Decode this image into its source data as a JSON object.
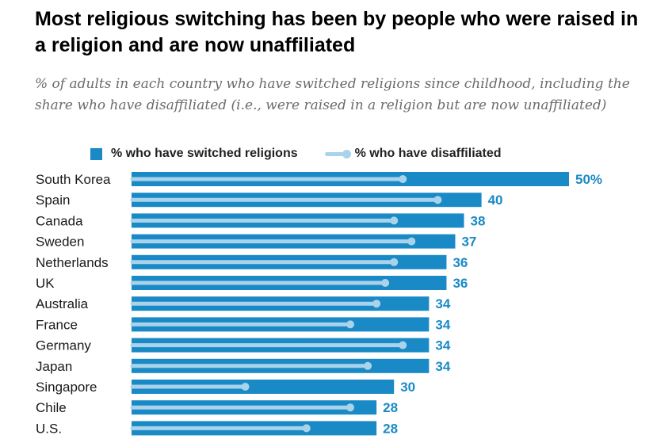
{
  "chart_data": {
    "type": "bar",
    "title": "Most religious switching has been by people who were raised in a religion and are now unaffiliated",
    "subtitle": "% of adults in each country who have switched religions since childhood, including the share who have disaffiliated (i.e., were raised in a religion but are now unaffiliated)",
    "legend": [
      {
        "label": "% who have switched religions",
        "marker": "bar"
      },
      {
        "label": "% who have disaffiliated",
        "marker": "line-dot"
      }
    ],
    "legend_position": "top",
    "categories": [
      "South Korea",
      "Spain",
      "Canada",
      "Sweden",
      "Netherlands",
      "UK",
      "Australia",
      "France",
      "Germany",
      "Japan",
      "Singapore",
      "Chile",
      "U.S."
    ],
    "series": [
      {
        "name": "% who have switched religions",
        "values": [
          50,
          40,
          38,
          37,
          36,
          36,
          34,
          34,
          34,
          34,
          30,
          28,
          28
        ],
        "labels": [
          "50%",
          "40",
          "38",
          "37",
          "36",
          "36",
          "34",
          "34",
          "34",
          "34",
          "30",
          "28",
          "28"
        ]
      },
      {
        "name": "% who have disaffiliated",
        "values": [
          31,
          35,
          30,
          32,
          30,
          29,
          28,
          25,
          31,
          27,
          13,
          25,
          20
        ]
      }
    ],
    "xlim": [
      0,
      50
    ],
    "grid": false
  },
  "colors": {
    "bar": "#1a8ac6",
    "line": "#a9d3ea",
    "dot": "#a9d3ea",
    "value_label": "#1a8ac6"
  }
}
